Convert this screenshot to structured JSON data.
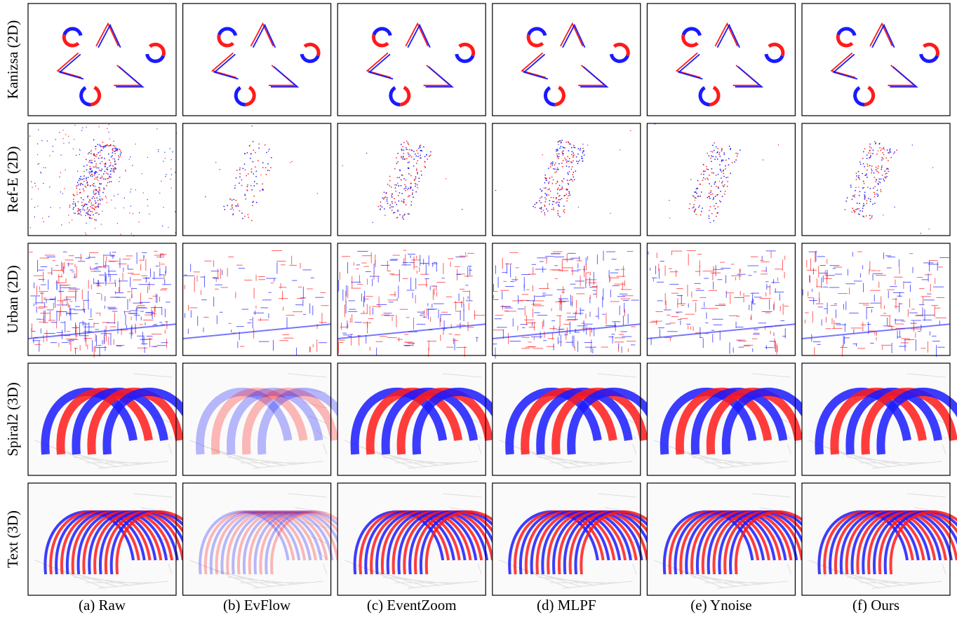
{
  "row_labels": [
    "Kanizsa (2D)",
    "Ref-E (2D)",
    "Urban (2D)",
    "Spiral2 (3D)",
    "Text (3D)"
  ],
  "column_captions": [
    "(a) Raw",
    "(b) EvFlow",
    "(c) EventZoom",
    "(d) MLPF",
    "(e) Ynoise",
    "(f) Ours"
  ]
}
